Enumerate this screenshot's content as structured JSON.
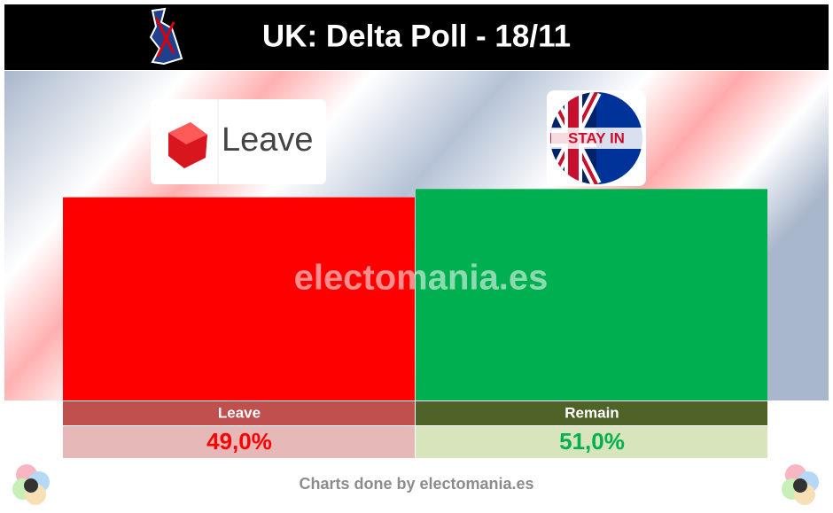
{
  "chart_data": {
    "type": "bar",
    "title": "UK: Delta Poll - 18/11",
    "categories": [
      "Leave",
      "Remain"
    ],
    "values": [
      49.0,
      51.0
    ],
    "value_labels": [
      "49,0%",
      "51,0%"
    ],
    "colors": [
      "#ff0000",
      "#00b050"
    ],
    "logo_texts": [
      "Leave",
      "STAY IN"
    ],
    "watermark": "electomania.es",
    "footer": "Charts done by electomania.es"
  }
}
